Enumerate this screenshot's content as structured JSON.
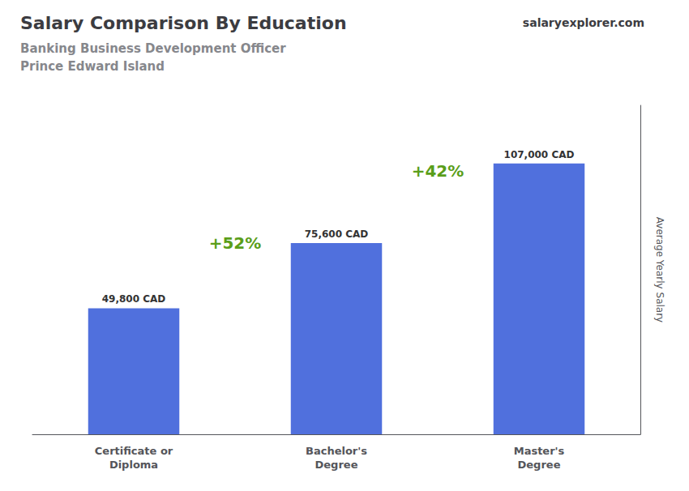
{
  "chart_data": {
    "type": "bar",
    "title": "Salary Comparison By Education",
    "subtitle": [
      "Banking Business Development Officer",
      "Prince Edward Island"
    ],
    "watermark": "salaryexplorer.com",
    "ylabel": "Average Yearly Salary",
    "categories": [
      "Certificate or\nDiploma",
      "Bachelor's\nDegree",
      "Master's\nDegree"
    ],
    "values": [
      49800,
      75600,
      107000
    ],
    "value_labels": [
      "49,800 CAD",
      "75,600 CAD",
      "107,000 CAD"
    ],
    "data_labels": true,
    "annotations": [
      "+52%",
      "+42%"
    ],
    "ylim": [
      0,
      130000
    ],
    "tick_labels": "x",
    "grid": false
  }
}
